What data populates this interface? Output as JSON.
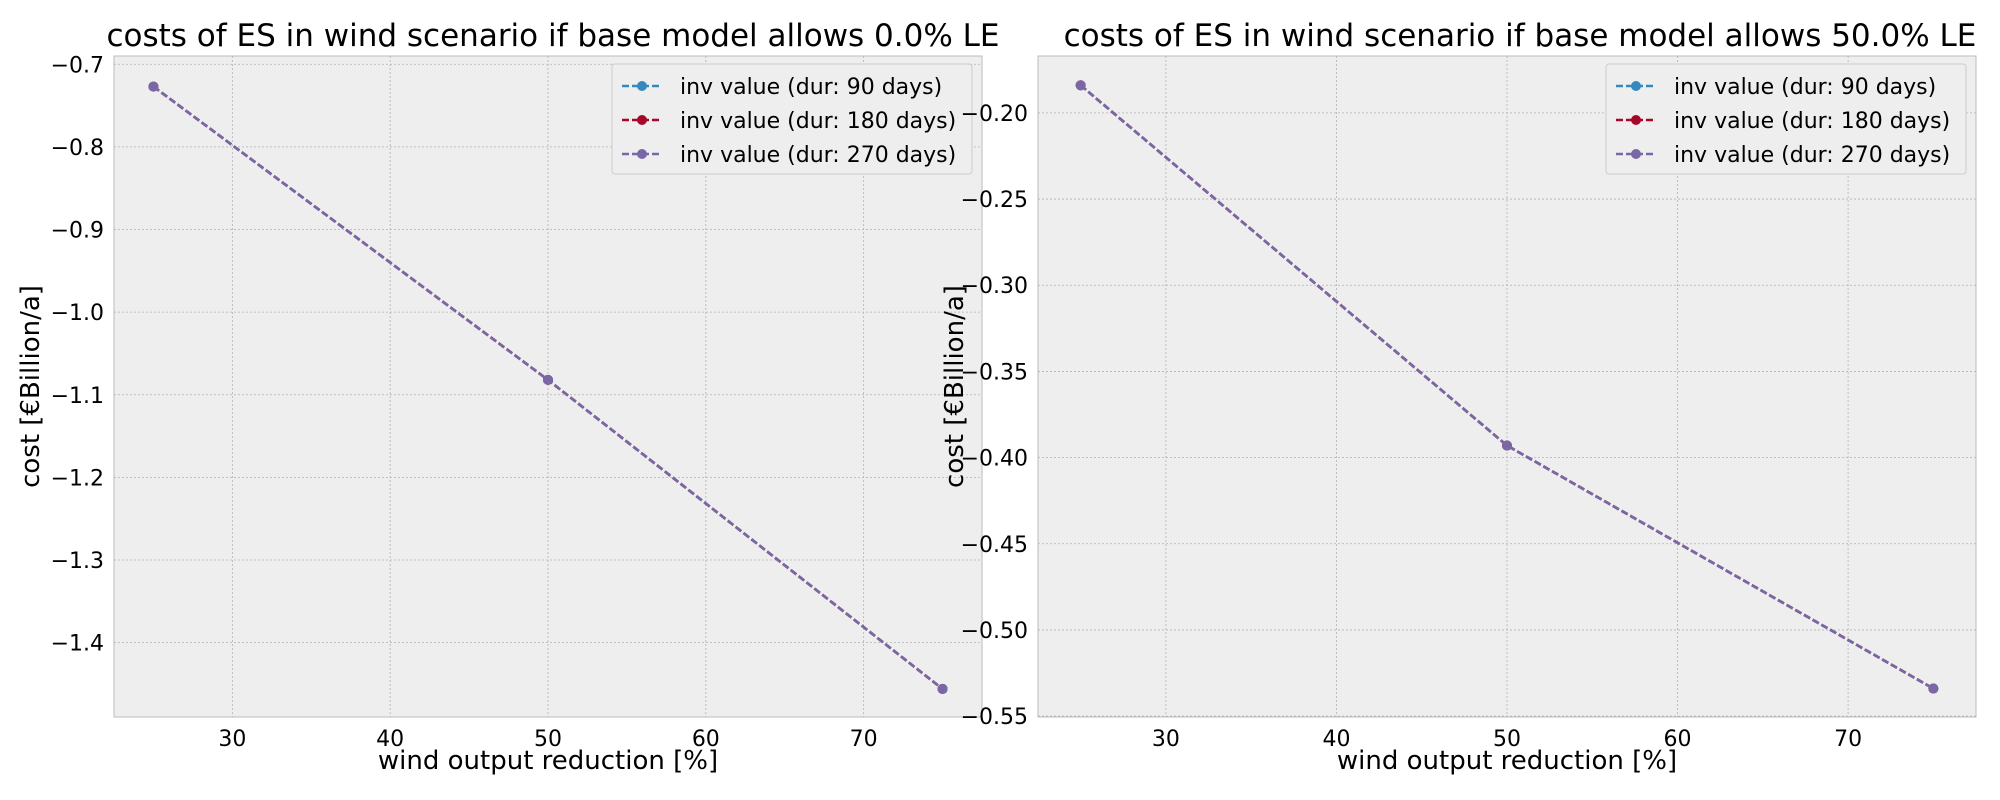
{
  "chart_data": [
    {
      "type": "line",
      "title": "costs of ES in wind scenario if base model allows 0.0% LE",
      "xlabel": "wind output reduction [%]",
      "ylabel": "cost [€Billion/a]",
      "xlim": [
        22.5,
        77.5
      ],
      "ylim": [
        -1.49,
        -0.69
      ],
      "xticks": [
        30,
        40,
        50,
        60,
        70
      ],
      "xtick_labels": [
        "30",
        "40",
        "50",
        "60",
        "70"
      ],
      "yticks": [
        -0.7,
        -0.8,
        -0.9,
        -1.0,
        -1.1,
        -1.2,
        -1.3,
        -1.4
      ],
      "ytick_labels": [
        "−0.7",
        "−0.8",
        "−0.9",
        "−1.0",
        "−1.1",
        "−1.2",
        "−1.3",
        "−1.4"
      ],
      "grid": true,
      "legend_position": "top-right",
      "x": [
        25,
        50,
        75
      ],
      "series": [
        {
          "name": "inv value (dur: 90 days)",
          "color": "#348ABD",
          "values": [
            -0.727,
            -1.082,
            -1.456
          ]
        },
        {
          "name": "inv value (dur: 180 days)",
          "color": "#A60628",
          "values": [
            -0.727,
            -1.082,
            -1.456
          ]
        },
        {
          "name": "inv value (dur: 270 days)",
          "color": "#7A68A6",
          "values": [
            -0.727,
            -1.082,
            -1.456
          ]
        }
      ]
    },
    {
      "type": "line",
      "title": "costs of ES in wind scenario if base model allows 50.0% LE",
      "xlabel": "wind output reduction [%]",
      "ylabel": "cost [€Billion/a]",
      "xlim": [
        22.5,
        77.5
      ],
      "ylim": [
        -0.5505,
        -0.167
      ],
      "xticks": [
        30,
        40,
        50,
        60,
        70
      ],
      "xtick_labels": [
        "30",
        "40",
        "50",
        "60",
        "70"
      ],
      "yticks": [
        -0.2,
        -0.25,
        -0.3,
        -0.35,
        -0.4,
        -0.45,
        -0.5,
        -0.55
      ],
      "ytick_labels": [
        "−0.20",
        "−0.25",
        "−0.30",
        "−0.35",
        "−0.40",
        "−0.45",
        "−0.50",
        "−0.55"
      ],
      "grid": true,
      "legend_position": "top-right",
      "x": [
        25,
        50,
        75
      ],
      "series": [
        {
          "name": "inv value (dur: 90 days)",
          "color": "#348ABD",
          "values": [
            -0.184,
            -0.393,
            -0.534
          ]
        },
        {
          "name": "inv value (dur: 180 days)",
          "color": "#A60628",
          "values": [
            -0.184,
            -0.393,
            -0.534
          ]
        },
        {
          "name": "inv value (dur: 270 days)",
          "color": "#7A68A6",
          "values": [
            -0.184,
            -0.393,
            -0.534
          ]
        }
      ]
    }
  ]
}
